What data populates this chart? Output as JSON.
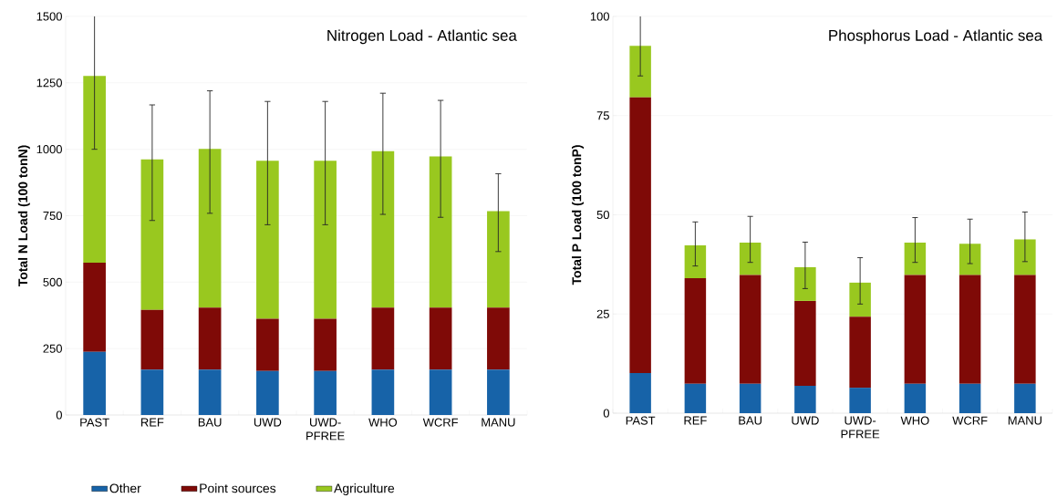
{
  "chart_data": [
    {
      "type": "bar",
      "stacked": true,
      "title": "Nitrogen Load - Atlantic sea",
      "ylabel": "Total N Load (100 tonN)",
      "categories": [
        "PAST",
        "REF",
        "BAU",
        "UWD",
        "UWD-PFREE",
        "WHO",
        "WCRF",
        "MANU"
      ],
      "ylim": [
        0,
        1500
      ],
      "yticks": [
        0,
        250,
        500,
        750,
        1000,
        1250,
        1500
      ],
      "grid": "y",
      "legend": "bottom",
      "series": [
        {
          "name": "Other",
          "color": "#1763a8",
          "values": [
            238,
            171,
            171,
            166,
            166,
            171,
            171,
            171
          ]
        },
        {
          "name": "Point sources",
          "color": "#7f0a07",
          "values": [
            335,
            225,
            233,
            196,
            196,
            233,
            233,
            233
          ]
        },
        {
          "name": "Agriculture",
          "color": "#99c81f",
          "values": [
            703,
            566,
            597,
            595,
            595,
            589,
            569,
            363
          ],
          "errors": [
            [
              1000,
              1500
            ],
            [
              732,
              1167
            ],
            [
              759,
              1220
            ],
            [
              716,
              1180
            ],
            [
              716,
              1180
            ],
            [
              755,
              1211
            ],
            [
              744,
              1184
            ],
            [
              615,
              908
            ]
          ]
        }
      ]
    },
    {
      "type": "bar",
      "stacked": true,
      "title": "Phosphorus Load - Atlantic sea",
      "ylabel": "Total P Load (100 tonP)",
      "categories": [
        "PAST",
        "REF",
        "BAU",
        "UWD",
        "UWD-PFREE",
        "WHO",
        "WCRF",
        "MANU"
      ],
      "ylim": [
        0,
        100
      ],
      "yticks": [
        0,
        25,
        50,
        75,
        100
      ],
      "grid": "y",
      "series": [
        {
          "color": "#1763a8",
          "values": [
            10.1,
            7.4,
            7.4,
            6.9,
            6.4,
            7.4,
            7.4,
            7.4
          ]
        },
        {
          "color": "#7f0a07",
          "values": [
            69.5,
            26.6,
            27.4,
            21.4,
            17.9,
            27.4,
            27.4,
            27.4
          ]
        },
        {
          "color": "#99c81f",
          "values": [
            13.0,
            8.3,
            8.2,
            8.5,
            8.6,
            8.2,
            7.9,
            9.0
          ],
          "errors": [
            [
              85,
              100
            ],
            [
              37.1,
              48.2
            ],
            [
              38.0,
              49.6
            ],
            [
              31.4,
              43.1
            ],
            [
              27.5,
              39.2
            ],
            [
              38.0,
              49.3
            ],
            [
              37.7,
              48.9
            ],
            [
              38.2,
              50.7
            ]
          ]
        }
      ]
    }
  ]
}
